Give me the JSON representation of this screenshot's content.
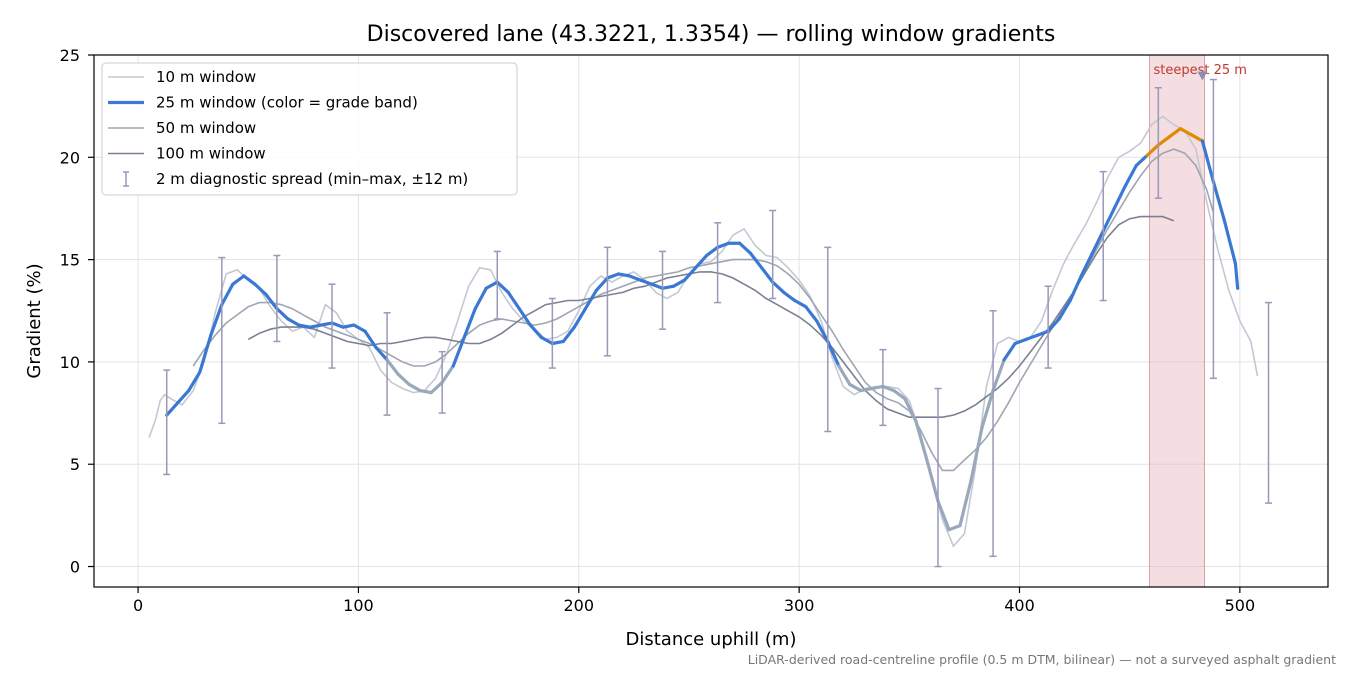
{
  "chart_data": {
    "type": "line",
    "title": "Discovered lane (43.3221, 1.3354) — rolling window gradients",
    "xlabel": "Distance uphill (m)",
    "ylabel": "Gradient (%)",
    "xlim": [
      -20,
      540
    ],
    "ylim": [
      -1,
      25
    ],
    "xticks": [
      0,
      100,
      200,
      300,
      400,
      500
    ],
    "yticks": [
      0,
      5,
      10,
      15,
      20,
      25
    ],
    "grid": true,
    "legend_position": "top-left",
    "footnote": "LiDAR-derived road-centreline profile (0.5 m DTM, bilinear) — not a surveyed asphalt gradient",
    "highlight": {
      "label": "steepest 25 m",
      "x_range": [
        459,
        484
      ],
      "marker_x": 483
    },
    "colors": {
      "w10": "#c3c8d4",
      "w25": "#3a78d4",
      "w25_steep": "#e08a00",
      "w25_flat": "#9aa8bb",
      "w50": "#9ea6b3",
      "w100": "#7b8190",
      "diag": "#9a98b8",
      "highlight": "#e8b6bc"
    },
    "series": [
      {
        "name": "10 m window",
        "x": [
          5,
          8,
          10,
          12,
          15,
          20,
          25,
          30,
          35,
          40,
          45,
          50,
          55,
          60,
          65,
          70,
          75,
          80,
          85,
          90,
          95,
          100,
          105,
          110,
          115,
          120,
          125,
          130,
          135,
          140,
          145,
          150,
          155,
          160,
          165,
          170,
          175,
          180,
          185,
          190,
          195,
          200,
          205,
          210,
          215,
          220,
          225,
          230,
          235,
          240,
          245,
          250,
          255,
          260,
          265,
          270,
          275,
          280,
          285,
          290,
          295,
          300,
          305,
          310,
          315,
          320,
          325,
          330,
          335,
          340,
          345,
          350,
          355,
          360,
          365,
          370,
          375,
          380,
          385,
          390,
          395,
          400,
          405,
          410,
          415,
          420,
          425,
          430,
          435,
          440,
          445,
          450,
          455,
          460,
          465,
          470,
          475,
          480,
          485,
          490,
          495,
          500,
          505,
          508
        ],
        "y": [
          6.3,
          7.2,
          8.1,
          8.4,
          8.2,
          7.9,
          8.6,
          10.0,
          12.4,
          14.3,
          14.5,
          14.0,
          13.6,
          12.7,
          12.0,
          11.5,
          11.7,
          11.2,
          12.8,
          12.4,
          11.5,
          11.1,
          10.7,
          9.6,
          9.0,
          8.7,
          8.5,
          8.6,
          9.2,
          10.4,
          12.0,
          13.7,
          14.6,
          14.5,
          13.4,
          12.6,
          12.0,
          11.6,
          11.1,
          11.2,
          11.5,
          12.5,
          13.7,
          14.2,
          13.9,
          14.2,
          14.4,
          14.0,
          13.4,
          13.1,
          13.4,
          14.3,
          14.8,
          14.9,
          15.4,
          16.2,
          16.5,
          15.7,
          15.2,
          15.1,
          14.6,
          14.0,
          13.2,
          12.0,
          10.2,
          8.8,
          8.4,
          8.7,
          8.8,
          8.8,
          8.7,
          8.1,
          6.5,
          4.5,
          2.3,
          1.0,
          1.6,
          4.8,
          8.8,
          10.9,
          11.2,
          11.0,
          11.2,
          12.0,
          13.5,
          14.8,
          15.8,
          16.7,
          17.8,
          19.0,
          20.0,
          20.3,
          20.7,
          21.6,
          22.0,
          21.6,
          21.3,
          20.4,
          17.8,
          15.5,
          13.5,
          12.0,
          11.0,
          9.3
        ]
      },
      {
        "name": "25 m window (color = grade band)",
        "x": [
          13,
          18,
          23,
          28,
          33,
          38,
          43,
          48,
          53,
          58,
          63,
          68,
          73,
          78,
          83,
          88,
          93,
          98,
          103,
          108,
          113,
          118,
          123,
          128,
          133,
          138,
          143,
          148,
          153,
          158,
          163,
          168,
          173,
          178,
          183,
          188,
          193,
          198,
          203,
          208,
          213,
          218,
          223,
          228,
          233,
          238,
          243,
          248,
          253,
          258,
          263,
          268,
          273,
          278,
          283,
          288,
          293,
          298,
          303,
          308,
          313,
          318,
          323,
          328,
          333,
          338,
          343,
          348,
          353,
          358,
          363,
          368,
          373,
          378,
          383,
          388,
          393,
          398,
          403,
          408,
          413,
          418,
          423,
          428,
          433,
          438,
          443,
          448,
          453,
          458,
          463,
          468,
          473,
          478,
          483,
          488,
          493,
          498,
          499
        ],
        "y": [
          7.4,
          8.0,
          8.6,
          9.5,
          11.3,
          12.8,
          13.8,
          14.2,
          13.8,
          13.3,
          12.6,
          12.1,
          11.8,
          11.7,
          11.8,
          11.9,
          11.7,
          11.8,
          11.5,
          10.7,
          10.1,
          9.4,
          8.9,
          8.6,
          8.5,
          9.0,
          9.8,
          11.2,
          12.6,
          13.6,
          13.9,
          13.4,
          12.6,
          11.8,
          11.2,
          10.9,
          11.0,
          11.7,
          12.6,
          13.5,
          14.1,
          14.3,
          14.2,
          14.0,
          13.8,
          13.6,
          13.7,
          14.0,
          14.6,
          15.2,
          15.6,
          15.8,
          15.8,
          15.3,
          14.6,
          13.9,
          13.4,
          13.0,
          12.7,
          12.0,
          11.0,
          9.8,
          8.9,
          8.6,
          8.7,
          8.8,
          8.6,
          8.2,
          7.1,
          5.2,
          3.2,
          1.8,
          2.0,
          4.2,
          6.8,
          8.6,
          10.1,
          10.9,
          11.1,
          11.3,
          11.5,
          12.1,
          13.0,
          14.2,
          15.3,
          16.4,
          17.5,
          18.6,
          19.6,
          20.1,
          20.6,
          21.0,
          21.4,
          21.1,
          20.8,
          18.8,
          16.9,
          14.8,
          13.6
        ]
      },
      {
        "name": "50 m window",
        "x": [
          25,
          30,
          35,
          40,
          45,
          50,
          55,
          60,
          65,
          70,
          75,
          80,
          85,
          90,
          95,
          100,
          105,
          110,
          115,
          120,
          125,
          130,
          135,
          140,
          145,
          150,
          155,
          160,
          165,
          170,
          175,
          180,
          185,
          190,
          195,
          200,
          205,
          210,
          215,
          220,
          225,
          230,
          235,
          240,
          245,
          250,
          255,
          260,
          265,
          270,
          275,
          280,
          285,
          290,
          295,
          300,
          305,
          310,
          315,
          320,
          325,
          330,
          335,
          340,
          345,
          350,
          355,
          360,
          365,
          370,
          375,
          380,
          385,
          390,
          395,
          400,
          405,
          410,
          415,
          420,
          425,
          430,
          435,
          440,
          445,
          450,
          455,
          460,
          465,
          470,
          475,
          480,
          485,
          488
        ],
        "y": [
          9.8,
          10.6,
          11.3,
          11.9,
          12.3,
          12.7,
          12.9,
          12.9,
          12.8,
          12.6,
          12.3,
          12.0,
          11.7,
          11.5,
          11.3,
          11.1,
          10.9,
          10.6,
          10.3,
          10.0,
          9.8,
          9.8,
          10.0,
          10.4,
          10.9,
          11.4,
          11.8,
          12.0,
          12.1,
          12.0,
          11.9,
          11.8,
          11.9,
          12.1,
          12.4,
          12.7,
          13.0,
          13.3,
          13.5,
          13.7,
          13.9,
          14.1,
          14.2,
          14.3,
          14.4,
          14.6,
          14.7,
          14.8,
          14.9,
          15.0,
          15.0,
          15.0,
          14.9,
          14.7,
          14.3,
          13.8,
          13.1,
          12.3,
          11.5,
          10.6,
          9.8,
          9.0,
          8.5,
          8.2,
          8.0,
          7.6,
          6.7,
          5.6,
          4.7,
          4.7,
          5.2,
          5.7,
          6.3,
          7.1,
          8.0,
          9.0,
          9.9,
          10.8,
          11.7,
          12.6,
          13.5,
          14.5,
          15.5,
          16.5,
          17.4,
          18.3,
          19.1,
          19.8,
          20.2,
          20.4,
          20.2,
          19.6,
          18.4,
          17.3
        ]
      },
      {
        "name": "100 m window",
        "x": [
          50,
          55,
          60,
          65,
          70,
          75,
          80,
          85,
          90,
          95,
          100,
          105,
          110,
          115,
          120,
          125,
          130,
          135,
          140,
          145,
          150,
          155,
          160,
          165,
          170,
          175,
          180,
          185,
          190,
          195,
          200,
          205,
          210,
          215,
          220,
          225,
          230,
          235,
          240,
          245,
          250,
          255,
          260,
          265,
          270,
          275,
          280,
          285,
          290,
          295,
          300,
          305,
          310,
          315,
          320,
          325,
          330,
          335,
          340,
          345,
          350,
          355,
          360,
          365,
          370,
          375,
          380,
          385,
          390,
          395,
          400,
          405,
          410,
          415,
          420,
          425,
          430,
          435,
          440,
          445,
          450,
          455,
          460,
          465,
          470
        ],
        "y": [
          11.1,
          11.4,
          11.6,
          11.7,
          11.7,
          11.7,
          11.6,
          11.4,
          11.2,
          11.0,
          10.9,
          10.8,
          10.9,
          10.9,
          11.0,
          11.1,
          11.2,
          11.2,
          11.1,
          11.0,
          10.9,
          10.9,
          11.1,
          11.4,
          11.8,
          12.2,
          12.5,
          12.8,
          12.9,
          13.0,
          13.0,
          13.1,
          13.2,
          13.3,
          13.4,
          13.6,
          13.7,
          13.9,
          14.1,
          14.2,
          14.3,
          14.4,
          14.4,
          14.3,
          14.1,
          13.8,
          13.5,
          13.1,
          12.8,
          12.5,
          12.2,
          11.8,
          11.3,
          10.7,
          10.0,
          9.3,
          8.6,
          8.1,
          7.7,
          7.5,
          7.3,
          7.3,
          7.3,
          7.3,
          7.4,
          7.6,
          7.9,
          8.3,
          8.7,
          9.2,
          9.8,
          10.5,
          11.2,
          11.9,
          12.7,
          13.5,
          14.4,
          15.3,
          16.1,
          16.7,
          17.0,
          17.1,
          17.1,
          17.1,
          16.9
        ]
      }
    ],
    "diagnostic": {
      "name": "2 m diagnostic spread (min–max, ±12 m)",
      "x": [
        13,
        38,
        63,
        88,
        113,
        138,
        163,
        188,
        213,
        238,
        263,
        288,
        313,
        338,
        363,
        388,
        413,
        438,
        463,
        488,
        513
      ],
      "low": [
        4.5,
        7.0,
        11.0,
        9.7,
        7.4,
        7.5,
        12.1,
        9.7,
        10.3,
        11.6,
        12.9,
        13.1,
        6.6,
        6.9,
        0.0,
        0.5,
        9.7,
        13.0,
        18.0,
        9.2,
        3.1
      ],
      "high": [
        9.6,
        15.1,
        15.2,
        13.8,
        12.4,
        10.5,
        15.4,
        13.1,
        15.6,
        15.4,
        16.8,
        17.4,
        15.6,
        10.6,
        8.7,
        12.5,
        13.7,
        19.3,
        23.4,
        23.8,
        12.9
      ]
    }
  }
}
